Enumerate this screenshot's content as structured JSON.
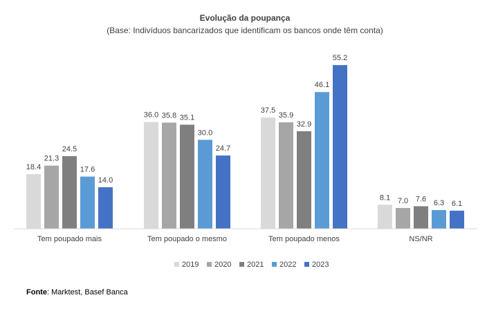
{
  "chart_data": {
    "type": "bar",
    "title": "Evolução da poupança",
    "subtitle": "(Base: Indivíduos bancarizados que identificam os bancos onde têm conta)",
    "categories": [
      "Tem poupado mais",
      "Tem poupado o mesmo",
      "Tem poupado menos",
      "NS/NR"
    ],
    "series": [
      {
        "name": "2019",
        "color": "#d9d9d9",
        "values": [
          18.4,
          36.0,
          37.5,
          8.1
        ]
      },
      {
        "name": "2020",
        "color": "#a6a6a6",
        "values": [
          21.3,
          35.8,
          35.9,
          7.0
        ]
      },
      {
        "name": "2021",
        "color": "#7f7f7f",
        "values": [
          24.5,
          35.1,
          32.9,
          7.6
        ]
      },
      {
        "name": "2022",
        "color": "#5b9bd5",
        "values": [
          17.6,
          30.0,
          46.1,
          6.3
        ]
      },
      {
        "name": "2023",
        "color": "#4472c4",
        "values": [
          14.0,
          24.7,
          55.2,
          6.1
        ]
      }
    ],
    "ylim": [
      0,
      60
    ],
    "grid": false,
    "legend": "bottom",
    "xlabel": "",
    "ylabel": ""
  },
  "source": {
    "label": "Fonte",
    "text": ": Marktest, Basef Banca"
  }
}
